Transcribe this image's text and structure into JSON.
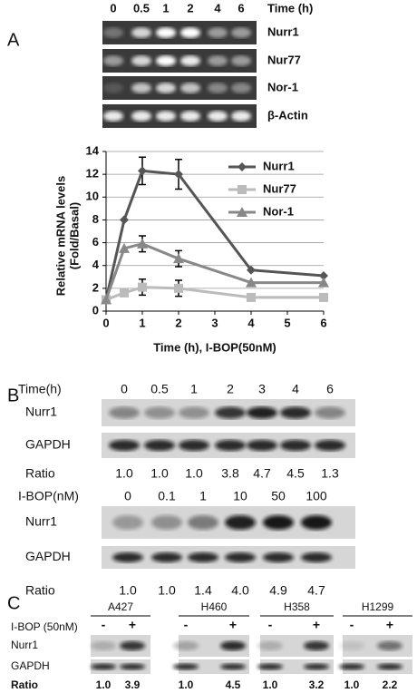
{
  "panel_a": {
    "label": "A",
    "time_label": "Time (h)",
    "lanes": [
      "0",
      "0.5",
      "1",
      "2",
      "4",
      "6"
    ],
    "genes": [
      "Nurr1",
      "Nur77",
      "Nor-1",
      "β-Actin"
    ]
  },
  "chart_data": {
    "type": "line",
    "ylabel": [
      "Relative mRNA levels",
      "(Fold/Basal)"
    ],
    "xlabel": "Time (h), I-BOP(50nM)",
    "x": [
      0,
      0.5,
      1,
      2,
      4,
      6
    ],
    "xlim": [
      0,
      6
    ],
    "xticks": [
      0,
      1,
      2,
      3,
      4,
      5,
      6
    ],
    "ylim": [
      0,
      14
    ],
    "yticks": [
      0,
      2,
      4,
      6,
      8,
      10,
      12,
      14
    ],
    "grid": true,
    "legend": "upper right",
    "series": [
      {
        "name": "Nurr1",
        "color": "#555555",
        "marker": "diamond",
        "values": [
          1,
          8,
          12.3,
          12,
          3.6,
          3.1
        ],
        "errors": [
          null,
          null,
          1.2,
          1.3,
          null,
          null
        ]
      },
      {
        "name": "Nur77",
        "color": "#bbbbbb",
        "marker": "square",
        "values": [
          1,
          1.6,
          2.1,
          2,
          1.2,
          1.2
        ],
        "errors": [
          null,
          null,
          0.7,
          0.7,
          null,
          null
        ]
      },
      {
        "name": "Nor-1",
        "color": "#888888",
        "marker": "triangle",
        "values": [
          1,
          5.5,
          5.9,
          4.6,
          2.5,
          2.5
        ],
        "errors": [
          null,
          null,
          0.7,
          0.7,
          null,
          null
        ]
      }
    ]
  },
  "panel_b": {
    "label": "B",
    "ratio_label": "Ratio",
    "rows": [
      "Nurr1",
      "GAPDH"
    ],
    "blots": [
      {
        "header": "Time(h)",
        "lanes": [
          "0",
          "0.5",
          "1",
          "2",
          "3",
          "4",
          "6"
        ],
        "ratios": [
          "1.0",
          "1.0",
          "1.0",
          "3.8",
          "4.7",
          "4.5",
          "1.3"
        ]
      },
      {
        "header": "I-BOP(nM)",
        "lanes": [
          "0",
          "0.1",
          "1",
          "10",
          "50",
          "100"
        ],
        "ratios": [
          "1.0",
          "1.0",
          "1.4",
          "4.0",
          "4.9",
          "4.7"
        ]
      }
    ]
  },
  "panel_c": {
    "label": "C",
    "treatment": "I-BOP (50nM)",
    "rows": [
      "Nurr1",
      "GAPDH"
    ],
    "ratio_label": "Ratio",
    "cells": [
      {
        "name": "A427",
        "lanes": [
          "-",
          "+"
        ],
        "ratios": [
          "1.0",
          "3.9"
        ]
      },
      {
        "name": "H460",
        "lanes": [
          "-",
          "+"
        ],
        "ratios": [
          "1.0",
          "4.5"
        ]
      },
      {
        "name": "H358",
        "lanes": [
          "-",
          "+"
        ],
        "ratios": [
          "1.0",
          "3.2"
        ]
      },
      {
        "name": "H1299",
        "lanes": [
          "-",
          "+"
        ],
        "ratios": [
          "1.0",
          "2.2"
        ]
      }
    ]
  }
}
